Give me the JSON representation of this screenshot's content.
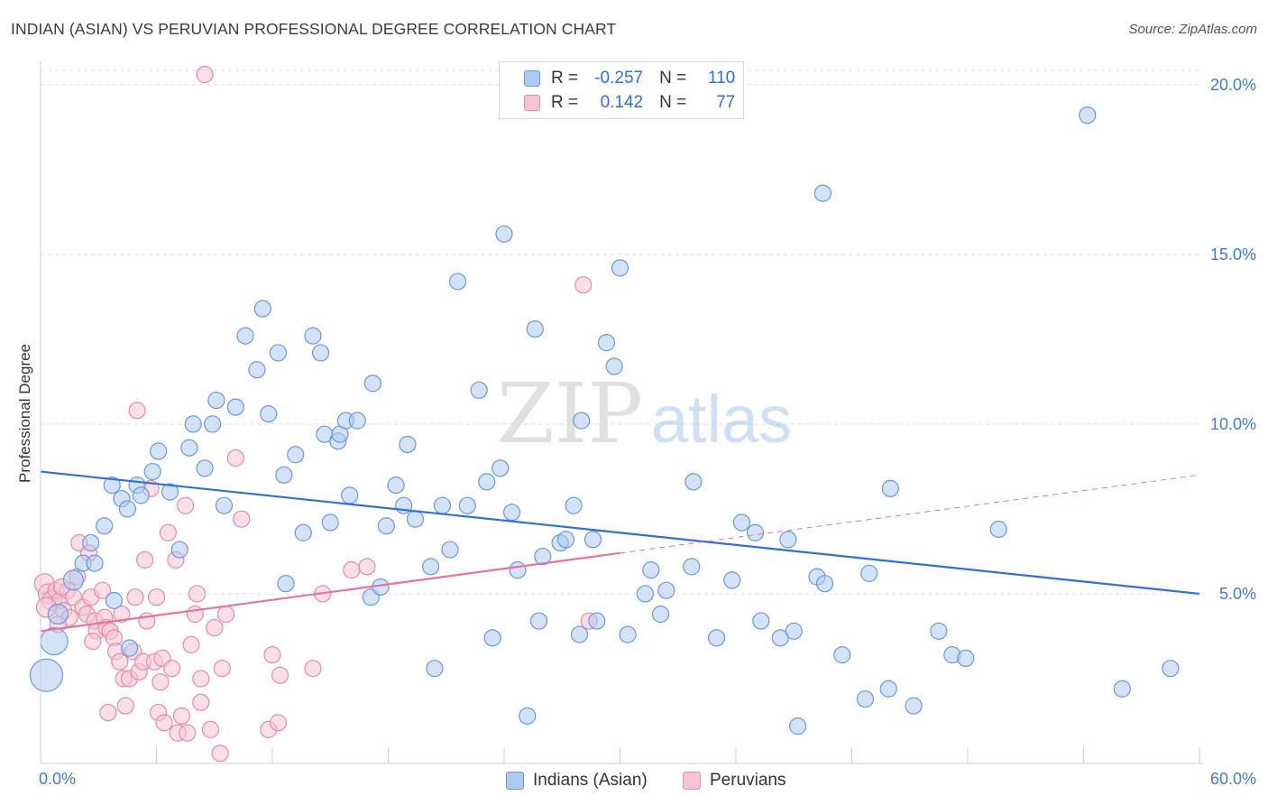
{
  "title": "INDIAN (ASIAN) VS PERUVIAN PROFESSIONAL DEGREE CORRELATION CHART",
  "source": "Source: ZipAtlas.com",
  "watermark": {
    "zip": "ZIP",
    "atlas": "atlas"
  },
  "colors": {
    "blue_fill": "#aecaf0",
    "blue_stroke": "#6a98dc",
    "blue_line": "#2f6fd6",
    "pink_fill": "#f7c4d4",
    "pink_stroke": "#e889a9",
    "pink_line": "#e8739a",
    "axis_label": "#3f7ad6",
    "grid": "#dcdcdc"
  },
  "legend": {
    "r_label": "R =",
    "n_label": "N =",
    "series": [
      {
        "name": "Indians (Asian)",
        "r": "-0.257",
        "n": "110"
      },
      {
        "name": "Peruvians",
        "r": "0.142",
        "n": "77"
      }
    ]
  },
  "chart_data": {
    "type": "scatter",
    "title": "INDIAN (ASIAN) VS PERUVIAN PROFESSIONAL DEGREE CORRELATION CHART",
    "xlabel": "",
    "ylabel": "Professional Degree",
    "xlim": [
      0,
      60
    ],
    "ylim": [
      0,
      20.5
    ],
    "x_tick_labels": [
      "0.0%",
      "60.0%"
    ],
    "y_ticks": [
      5,
      10,
      15,
      20
    ],
    "y_tick_labels": [
      "5.0%",
      "10.0%",
      "15.0%",
      "20.0%"
    ],
    "grid": true,
    "legend_position": "bottom-center",
    "series": [
      {
        "name": "Indians (Asian)",
        "color": "#aecaf0",
        "points": [
          {
            "x": 0.3,
            "y": 2.6,
            "s": 18
          },
          {
            "x": 0.7,
            "y": 3.6,
            "s": 15
          },
          {
            "x": 0.9,
            "y": 4.4,
            "s": 11
          },
          {
            "x": 1.7,
            "y": 5.4,
            "s": 11
          },
          {
            "x": 2.2,
            "y": 5.9,
            "s": 9
          },
          {
            "x": 2.6,
            "y": 6.5,
            "s": 9
          },
          {
            "x": 2.8,
            "y": 5.9,
            "s": 9
          },
          {
            "x": 3.3,
            "y": 7.0,
            "s": 9
          },
          {
            "x": 3.7,
            "y": 8.2,
            "s": 9
          },
          {
            "x": 3.8,
            "y": 4.8,
            "s": 9
          },
          {
            "x": 4.2,
            "y": 7.8,
            "s": 9
          },
          {
            "x": 4.5,
            "y": 7.5,
            "s": 9
          },
          {
            "x": 4.6,
            "y": 3.4,
            "s": 9
          },
          {
            "x": 5.0,
            "y": 8.2,
            "s": 9
          },
          {
            "x": 5.2,
            "y": 7.9,
            "s": 9
          },
          {
            "x": 5.8,
            "y": 8.6,
            "s": 9
          },
          {
            "x": 6.1,
            "y": 9.2,
            "s": 9
          },
          {
            "x": 6.7,
            "y": 8.0,
            "s": 9
          },
          {
            "x": 7.2,
            "y": 6.3,
            "s": 9
          },
          {
            "x": 7.7,
            "y": 9.3,
            "s": 9
          },
          {
            "x": 7.9,
            "y": 10.0,
            "s": 9
          },
          {
            "x": 8.5,
            "y": 8.7,
            "s": 9
          },
          {
            "x": 8.9,
            "y": 10.0,
            "s": 9
          },
          {
            "x": 9.1,
            "y": 10.7,
            "s": 9
          },
          {
            "x": 9.5,
            "y": 7.6,
            "s": 9
          },
          {
            "x": 10.1,
            "y": 10.5,
            "s": 9
          },
          {
            "x": 10.6,
            "y": 12.6,
            "s": 9
          },
          {
            "x": 11.2,
            "y": 11.6,
            "s": 9
          },
          {
            "x": 11.5,
            "y": 13.4,
            "s": 9
          },
          {
            "x": 11.8,
            "y": 10.3,
            "s": 9
          },
          {
            "x": 12.3,
            "y": 12.1,
            "s": 9
          },
          {
            "x": 12.6,
            "y": 8.5,
            "s": 9
          },
          {
            "x": 12.7,
            "y": 5.3,
            "s": 9
          },
          {
            "x": 13.2,
            "y": 9.1,
            "s": 9
          },
          {
            "x": 13.6,
            "y": 6.8,
            "s": 9
          },
          {
            "x": 14.1,
            "y": 12.6,
            "s": 9
          },
          {
            "x": 14.5,
            "y": 12.1,
            "s": 9
          },
          {
            "x": 14.7,
            "y": 9.7,
            "s": 9
          },
          {
            "x": 15.0,
            "y": 7.1,
            "s": 9
          },
          {
            "x": 15.4,
            "y": 9.5,
            "s": 9
          },
          {
            "x": 15.5,
            "y": 9.7,
            "s": 9
          },
          {
            "x": 15.8,
            "y": 10.1,
            "s": 9
          },
          {
            "x": 16.4,
            "y": 10.1,
            "s": 9
          },
          {
            "x": 16.0,
            "y": 7.9,
            "s": 9
          },
          {
            "x": 17.1,
            "y": 4.9,
            "s": 9
          },
          {
            "x": 17.2,
            "y": 11.2,
            "s": 9
          },
          {
            "x": 17.6,
            "y": 5.2,
            "s": 9
          },
          {
            "x": 17.9,
            "y": 7.0,
            "s": 9
          },
          {
            "x": 18.4,
            "y": 8.2,
            "s": 9
          },
          {
            "x": 18.8,
            "y": 7.6,
            "s": 9
          },
          {
            "x": 19.0,
            "y": 9.4,
            "s": 9
          },
          {
            "x": 19.4,
            "y": 7.2,
            "s": 9
          },
          {
            "x": 20.2,
            "y": 5.8,
            "s": 9
          },
          {
            "x": 20.4,
            "y": 2.8,
            "s": 9
          },
          {
            "x": 20.8,
            "y": 7.6,
            "s": 9
          },
          {
            "x": 21.2,
            "y": 6.3,
            "s": 9
          },
          {
            "x": 21.6,
            "y": 14.2,
            "s": 9
          },
          {
            "x": 22.1,
            "y": 7.6,
            "s": 9
          },
          {
            "x": 22.7,
            "y": 11.0,
            "s": 9
          },
          {
            "x": 23.1,
            "y": 8.3,
            "s": 9
          },
          {
            "x": 23.4,
            "y": 3.7,
            "s": 9
          },
          {
            "x": 23.8,
            "y": 8.7,
            "s": 9
          },
          {
            "x": 24.0,
            "y": 15.6,
            "s": 9
          },
          {
            "x": 24.4,
            "y": 7.4,
            "s": 9
          },
          {
            "x": 24.7,
            "y": 5.7,
            "s": 9
          },
          {
            "x": 25.2,
            "y": 1.4,
            "s": 9
          },
          {
            "x": 25.6,
            "y": 12.8,
            "s": 9
          },
          {
            "x": 25.8,
            "y": 4.2,
            "s": 9
          },
          {
            "x": 26.0,
            "y": 6.1,
            "s": 9
          },
          {
            "x": 26.9,
            "y": 6.5,
            "s": 9
          },
          {
            "x": 27.2,
            "y": 6.6,
            "s": 9
          },
          {
            "x": 27.6,
            "y": 7.6,
            "s": 9
          },
          {
            "x": 27.9,
            "y": 3.8,
            "s": 9
          },
          {
            "x": 28.0,
            "y": 10.1,
            "s": 9
          },
          {
            "x": 28.6,
            "y": 6.6,
            "s": 9
          },
          {
            "x": 28.8,
            "y": 4.2,
            "s": 9
          },
          {
            "x": 29.3,
            "y": 12.4,
            "s": 9
          },
          {
            "x": 29.7,
            "y": 11.7,
            "s": 9
          },
          {
            "x": 30.0,
            "y": 14.6,
            "s": 9
          },
          {
            "x": 30.4,
            "y": 3.8,
            "s": 9
          },
          {
            "x": 31.3,
            "y": 5.0,
            "s": 9
          },
          {
            "x": 31.6,
            "y": 5.7,
            "s": 9
          },
          {
            "x": 32.1,
            "y": 4.4,
            "s": 9
          },
          {
            "x": 32.4,
            "y": 5.1,
            "s": 9
          },
          {
            "x": 33.7,
            "y": 5.8,
            "s": 9
          },
          {
            "x": 33.8,
            "y": 8.3,
            "s": 9
          },
          {
            "x": 35.0,
            "y": 3.7,
            "s": 9
          },
          {
            "x": 35.8,
            "y": 5.4,
            "s": 9
          },
          {
            "x": 36.3,
            "y": 7.1,
            "s": 9
          },
          {
            "x": 37.0,
            "y": 6.8,
            "s": 9
          },
          {
            "x": 37.3,
            "y": 4.2,
            "s": 9
          },
          {
            "x": 38.3,
            "y": 3.7,
            "s": 9
          },
          {
            "x": 38.7,
            "y": 6.6,
            "s": 9
          },
          {
            "x": 39.0,
            "y": 3.9,
            "s": 9
          },
          {
            "x": 39.2,
            "y": 1.1,
            "s": 9
          },
          {
            "x": 40.5,
            "y": 16.8,
            "s": 9
          },
          {
            "x": 40.2,
            "y": 5.5,
            "s": 9
          },
          {
            "x": 40.6,
            "y": 5.3,
            "s": 9
          },
          {
            "x": 41.5,
            "y": 3.2,
            "s": 9
          },
          {
            "x": 42.9,
            "y": 5.6,
            "s": 9
          },
          {
            "x": 42.7,
            "y": 1.9,
            "s": 9
          },
          {
            "x": 43.9,
            "y": 2.2,
            "s": 9
          },
          {
            "x": 44.0,
            "y": 8.1,
            "s": 9
          },
          {
            "x": 45.2,
            "y": 1.7,
            "s": 9
          },
          {
            "x": 46.5,
            "y": 3.9,
            "s": 9
          },
          {
            "x": 47.2,
            "y": 3.2,
            "s": 9
          },
          {
            "x": 47.9,
            "y": 3.1,
            "s": 9
          },
          {
            "x": 49.6,
            "y": 6.9,
            "s": 9
          },
          {
            "x": 54.2,
            "y": 19.1,
            "s": 9
          },
          {
            "x": 56.0,
            "y": 2.2,
            "s": 9
          },
          {
            "x": 58.5,
            "y": 2.8,
            "s": 9
          }
        ]
      },
      {
        "name": "Peruvians",
        "color": "#f7c4d4",
        "points": [
          {
            "x": 0.2,
            "y": 5.3,
            "s": 11
          },
          {
            "x": 0.4,
            "y": 5.0,
            "s": 11
          },
          {
            "x": 0.6,
            "y": 4.8,
            "s": 11
          },
          {
            "x": 0.8,
            "y": 5.1,
            "s": 9
          },
          {
            "x": 1.0,
            "y": 4.8,
            "s": 9
          },
          {
            "x": 1.2,
            "y": 4.5,
            "s": 9
          },
          {
            "x": 1.4,
            "y": 5.1,
            "s": 9
          },
          {
            "x": 1.5,
            "y": 4.3,
            "s": 9
          },
          {
            "x": 1.7,
            "y": 4.9,
            "s": 9
          },
          {
            "x": 1.9,
            "y": 5.5,
            "s": 9
          },
          {
            "x": 2.0,
            "y": 6.5,
            "s": 9
          },
          {
            "x": 2.2,
            "y": 4.6,
            "s": 9
          },
          {
            "x": 2.4,
            "y": 4.4,
            "s": 9
          },
          {
            "x": 2.5,
            "y": 6.2,
            "s": 9
          },
          {
            "x": 2.6,
            "y": 4.9,
            "s": 9
          },
          {
            "x": 2.8,
            "y": 4.2,
            "s": 9
          },
          {
            "x": 2.9,
            "y": 3.9,
            "s": 9
          },
          {
            "x": 3.2,
            "y": 5.1,
            "s": 9
          },
          {
            "x": 3.3,
            "y": 4.3,
            "s": 9
          },
          {
            "x": 3.4,
            "y": 4.0,
            "s": 9
          },
          {
            "x": 3.5,
            "y": 1.5,
            "s": 9
          },
          {
            "x": 3.6,
            "y": 3.9,
            "s": 9
          },
          {
            "x": 3.8,
            "y": 3.7,
            "s": 9
          },
          {
            "x": 3.9,
            "y": 3.3,
            "s": 9
          },
          {
            "x": 4.1,
            "y": 3.0,
            "s": 9
          },
          {
            "x": 4.2,
            "y": 4.4,
            "s": 9
          },
          {
            "x": 4.3,
            "y": 2.5,
            "s": 9
          },
          {
            "x": 4.4,
            "y": 1.7,
            "s": 9
          },
          {
            "x": 4.6,
            "y": 2.5,
            "s": 9
          },
          {
            "x": 4.8,
            "y": 3.3,
            "s": 9
          },
          {
            "x": 4.9,
            "y": 4.9,
            "s": 9
          },
          {
            "x": 5.0,
            "y": 10.4,
            "s": 9
          },
          {
            "x": 5.1,
            "y": 2.7,
            "s": 9
          },
          {
            "x": 5.3,
            "y": 3.0,
            "s": 9
          },
          {
            "x": 5.4,
            "y": 6.0,
            "s": 9
          },
          {
            "x": 5.5,
            "y": 4.2,
            "s": 9
          },
          {
            "x": 5.7,
            "y": 8.1,
            "s": 9
          },
          {
            "x": 5.9,
            "y": 3.0,
            "s": 9
          },
          {
            "x": 6.0,
            "y": 4.9,
            "s": 9
          },
          {
            "x": 6.1,
            "y": 1.5,
            "s": 9
          },
          {
            "x": 6.2,
            "y": 2.4,
            "s": 9
          },
          {
            "x": 6.3,
            "y": 3.1,
            "s": 9
          },
          {
            "x": 6.4,
            "y": 1.2,
            "s": 9
          },
          {
            "x": 6.6,
            "y": 6.8,
            "s": 9
          },
          {
            "x": 6.8,
            "y": 2.8,
            "s": 9
          },
          {
            "x": 7.0,
            "y": 6.0,
            "s": 9
          },
          {
            "x": 7.1,
            "y": 0.9,
            "s": 9
          },
          {
            "x": 7.3,
            "y": 1.4,
            "s": 9
          },
          {
            "x": 7.5,
            "y": 7.6,
            "s": 9
          },
          {
            "x": 7.6,
            "y": 0.9,
            "s": 9
          },
          {
            "x": 7.8,
            "y": 3.5,
            "s": 9
          },
          {
            "x": 8.0,
            "y": 4.4,
            "s": 9
          },
          {
            "x": 8.1,
            "y": 5.0,
            "s": 9
          },
          {
            "x": 8.3,
            "y": 1.8,
            "s": 9
          },
          {
            "x": 8.3,
            "y": 2.5,
            "s": 9
          },
          {
            "x": 8.5,
            "y": 20.3,
            "s": 9
          },
          {
            "x": 8.8,
            "y": 1.0,
            "s": 9
          },
          {
            "x": 9.0,
            "y": 4.0,
            "s": 9
          },
          {
            "x": 9.3,
            "y": 0.3,
            "s": 9
          },
          {
            "x": 9.4,
            "y": 2.8,
            "s": 9
          },
          {
            "x": 9.6,
            "y": 4.4,
            "s": 9
          },
          {
            "x": 10.1,
            "y": 9.0,
            "s": 9
          },
          {
            "x": 10.4,
            "y": 7.2,
            "s": 9
          },
          {
            "x": 11.8,
            "y": 1.0,
            "s": 9
          },
          {
            "x": 12.0,
            "y": 3.2,
            "s": 9
          },
          {
            "x": 12.3,
            "y": 1.2,
            "s": 9
          },
          {
            "x": 12.4,
            "y": 2.6,
            "s": 9
          },
          {
            "x": 14.1,
            "y": 2.8,
            "s": 9
          },
          {
            "x": 14.6,
            "y": 5.0,
            "s": 9
          },
          {
            "x": 16.1,
            "y": 5.7,
            "s": 9
          },
          {
            "x": 16.9,
            "y": 5.8,
            "s": 9
          },
          {
            "x": 28.1,
            "y": 14.1,
            "s": 9
          },
          {
            "x": 28.4,
            "y": 4.2,
            "s": 9
          },
          {
            "x": 0.3,
            "y": 4.6,
            "s": 11
          },
          {
            "x": 0.9,
            "y": 4.1,
            "s": 9
          },
          {
            "x": 1.1,
            "y": 5.2,
            "s": 9
          },
          {
            "x": 2.7,
            "y": 3.6,
            "s": 9
          }
        ]
      }
    ],
    "trend_lines": [
      {
        "series": "Indians (Asian)",
        "x0": 0,
        "y0": 8.6,
        "x1": 60,
        "y1": 5.0,
        "style": "solid"
      },
      {
        "series": "Peruvians",
        "x0": 0,
        "y0": 3.9,
        "x1": 30,
        "y1": 6.2,
        "style": "solid"
      },
      {
        "series": "Peruvians",
        "x0": 30,
        "y0": 6.2,
        "x1": 60,
        "y1": 8.5,
        "style": "dashed"
      }
    ]
  }
}
